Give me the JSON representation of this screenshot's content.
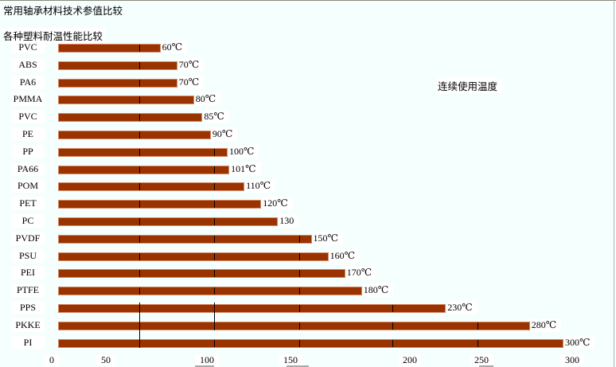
{
  "title": "常用轴承材料技术参值比较",
  "chart_data": {
    "type": "bar",
    "orientation": "horizontal",
    "title": "各种塑料耐温性能比较",
    "legend": "连续使用温度",
    "legend_placement": "top-right",
    "categories": [
      "PVC",
      "ABS",
      "PA6",
      "PMMA",
      "PVC",
      "PE",
      "PP",
      "PA66",
      "POM",
      "PET",
      "PC",
      "PVDF",
      "PSU",
      "PEI",
      "PTFE",
      "PPS",
      "PKKE",
      "PI"
    ],
    "values": [
      60,
      70,
      70,
      80,
      85,
      90,
      100,
      101,
      110,
      120,
      130,
      150,
      160,
      170,
      180,
      230,
      280,
      300
    ],
    "value_labels": [
      "60℃",
      "70℃",
      "70℃",
      "80℃",
      "85℃",
      "90℃",
      "100℃",
      "101℃",
      "110℃",
      "120℃",
      "130",
      "150℃",
      "160℃",
      "170℃",
      "180℃",
      "230℃",
      "280℃",
      "300℃"
    ],
    "x_ticks": [
      "0",
      "50",
      "100",
      "150",
      "200",
      "250",
      "300"
    ],
    "xlim": [
      0,
      300
    ],
    "bar_color": "#993300",
    "unit": "℃"
  }
}
